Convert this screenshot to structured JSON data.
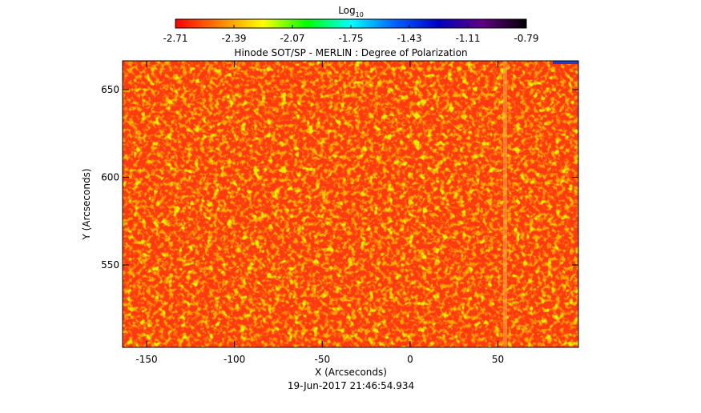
{
  "chart_data": {
    "type": "heatmap",
    "title": "Hinode SOT/SP - MERLIN : Degree of Polarization",
    "x_label": "X (Arcseconds)",
    "y_label": "Y (Arcseconds)",
    "footer": "19-Jun-2017 21:46:54.934",
    "colorbar_label": "Log",
    "colorbar_label_subscript": "10",
    "colorbar_lim": [
      -2.71,
      -0.79
    ],
    "colorbar_ticks": [
      -2.71,
      -2.39,
      -2.07,
      -1.75,
      -1.43,
      -1.11,
      -0.79
    ],
    "colormap": [
      "#ff0000",
      "#ff8000",
      "#ffff00",
      "#00ff00",
      "#00ffff",
      "#0060ff",
      "#0000c0",
      "#600080",
      "#000000"
    ],
    "xlim": [
      -163.7,
      95.8
    ],
    "xticks": [
      -150,
      -100,
      -50,
      0,
      50
    ],
    "ylim": [
      503,
      666.4
    ],
    "yticks": [
      550,
      600,
      650
    ]
  }
}
